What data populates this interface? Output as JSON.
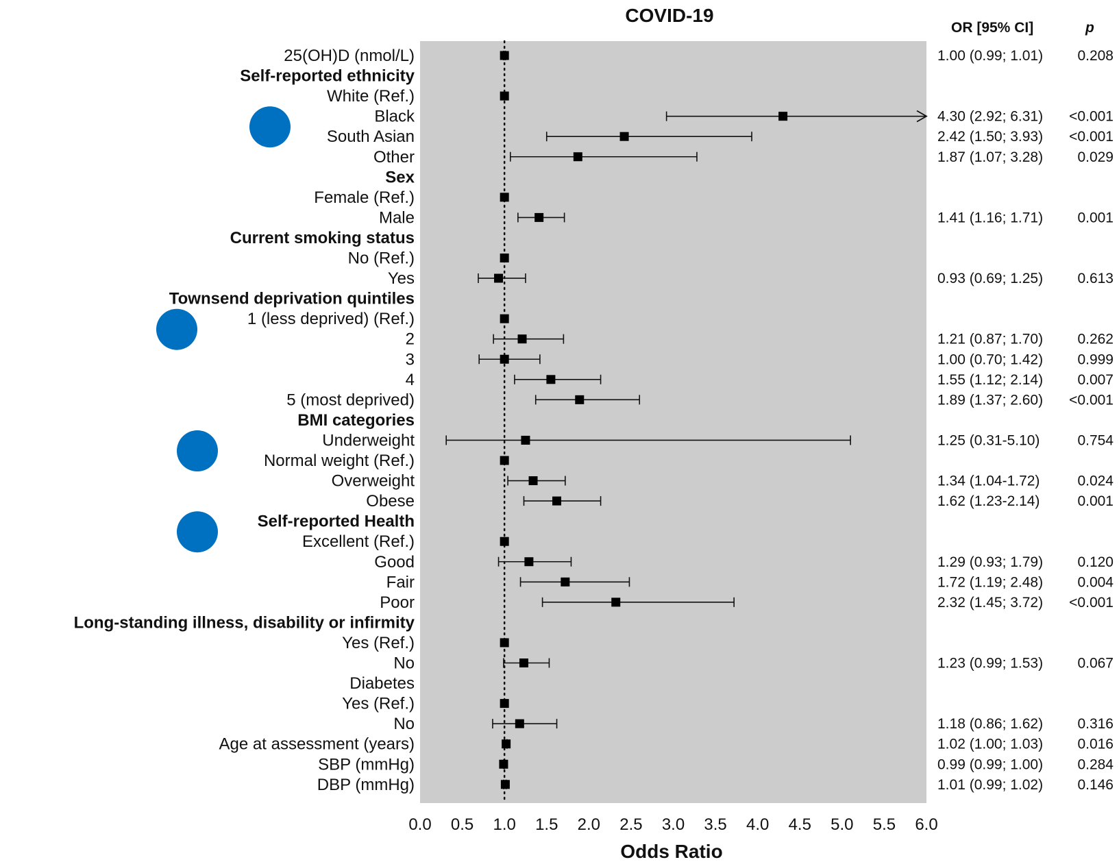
{
  "chart_data": {
    "type": "forest",
    "title": "COVID-19",
    "xlabel": "Odds Ratio",
    "xlim": [
      0,
      6
    ],
    "xticks": [
      "0.0",
      "0.5",
      "1.0",
      "1.5",
      "2.0",
      "2.5",
      "3.0",
      "3.5",
      "4.0",
      "4.5",
      "5.0",
      "5.5",
      "6.0"
    ],
    "reference_line": 1.0,
    "column_headers": {
      "or_ci": "OR  [95% CI]",
      "p": "p"
    },
    "highlight_color": "#cccccc",
    "marker_color": "#0070c0",
    "rows": [
      {
        "label": "25(OH)D (nmol/L)",
        "bold": false,
        "or": 1.0,
        "lo": 0.99,
        "hi": 1.01,
        "stat": "1.00 (0.99; 1.01)",
        "p": "0.208"
      },
      {
        "label": "Self-reported ethnicity",
        "bold": true
      },
      {
        "label": "White (Ref.)",
        "bold": false,
        "or": 1.0
      },
      {
        "label": "Black",
        "bold": false,
        "or": 4.3,
        "lo": 2.92,
        "hi": 6.31,
        "arrow": true,
        "stat": "4.30 (2.92; 6.31)",
        "p": "<0.001"
      },
      {
        "label": "South Asian",
        "bold": false,
        "or": 2.42,
        "lo": 1.5,
        "hi": 3.93,
        "stat": "2.42 (1.50; 3.93)",
        "p": "<0.001"
      },
      {
        "label": "Other",
        "bold": false,
        "or": 1.87,
        "lo": 1.07,
        "hi": 3.28,
        "stat": "1.87 (1.07; 3.28)",
        "p": "0.029"
      },
      {
        "label": "Sex",
        "bold": true
      },
      {
        "label": "Female (Ref.)",
        "bold": false,
        "or": 1.0
      },
      {
        "label": "Male",
        "bold": false,
        "or": 1.41,
        "lo": 1.16,
        "hi": 1.71,
        "stat": "1.41 (1.16; 1.71)",
        "p": "0.001"
      },
      {
        "label": "Current smoking status",
        "bold": true
      },
      {
        "label": "No (Ref.)",
        "bold": false,
        "or": 1.0
      },
      {
        "label": "Yes",
        "bold": false,
        "or": 0.93,
        "lo": 0.69,
        "hi": 1.25,
        "stat": "0.93 (0.69; 1.25)",
        "p": "0.613"
      },
      {
        "label": "Townsend deprivation quintiles",
        "bold": true
      },
      {
        "label": "1 (less deprived)  (Ref.)",
        "bold": false,
        "or": 1.0
      },
      {
        "label": "2",
        "bold": false,
        "or": 1.21,
        "lo": 0.87,
        "hi": 1.7,
        "stat": "1.21 (0.87; 1.70)",
        "p": "0.262"
      },
      {
        "label": "3",
        "bold": false,
        "or": 1.0,
        "lo": 0.7,
        "hi": 1.42,
        "stat": "1.00 (0.70; 1.42)",
        "p": "0.999"
      },
      {
        "label": "4",
        "bold": false,
        "or": 1.55,
        "lo": 1.12,
        "hi": 2.14,
        "stat": "1.55 (1.12; 2.14)",
        "p": "0.007"
      },
      {
        "label": "5 (most deprived)",
        "bold": false,
        "or": 1.89,
        "lo": 1.37,
        "hi": 2.6,
        "stat": "1.89 (1.37; 2.60)",
        "p": "<0.001"
      },
      {
        "label": "BMI categories",
        "bold": true
      },
      {
        "label": "Underweight",
        "bold": false,
        "or": 1.25,
        "lo": 0.31,
        "hi": 5.1,
        "stat": "1.25 (0.31-5.10)",
        "p": "0.754"
      },
      {
        "label": "Normal weight (Ref.)",
        "bold": false,
        "or": 1.0
      },
      {
        "label": "Overweight",
        "bold": false,
        "or": 1.34,
        "lo": 1.04,
        "hi": 1.72,
        "stat": "1.34 (1.04-1.72)",
        "p": "0.024"
      },
      {
        "label": "Obese",
        "bold": false,
        "or": 1.62,
        "lo": 1.23,
        "hi": 2.14,
        "stat": "1.62 (1.23-2.14)",
        "p": "0.001"
      },
      {
        "label": "Self-reported Health",
        "bold": true
      },
      {
        "label": "Excellent (Ref.)",
        "bold": false,
        "or": 1.0
      },
      {
        "label": "Good",
        "bold": false,
        "or": 1.29,
        "lo": 0.93,
        "hi": 1.79,
        "stat": "1.29 (0.93; 1.79)",
        "p": "0.120"
      },
      {
        "label": "Fair",
        "bold": false,
        "or": 1.72,
        "lo": 1.19,
        "hi": 2.48,
        "stat": "1.72 (1.19; 2.48)",
        "p": "0.004"
      },
      {
        "label": "Poor",
        "bold": false,
        "or": 2.32,
        "lo": 1.45,
        "hi": 3.72,
        "stat": "2.32 (1.45; 3.72)",
        "p": "<0.001"
      },
      {
        "label": "Long-standing illness, disability or infirmity",
        "bold": true
      },
      {
        "label": "Yes (Ref.)",
        "bold": false,
        "or": 1.0
      },
      {
        "label": "No",
        "bold": false,
        "or": 1.23,
        "lo": 0.99,
        "hi": 1.53,
        "stat": "1.23 (0.99; 1.53)",
        "p": "0.067"
      },
      {
        "label": "Diabetes",
        "bold": false
      },
      {
        "label": "Yes (Ref.)",
        "bold": false,
        "or": 1.0
      },
      {
        "label": "No",
        "bold": false,
        "or": 1.18,
        "lo": 0.86,
        "hi": 1.62,
        "stat": "1.18 (0.86; 1.62)",
        "p": "0.316"
      },
      {
        "label": "Age at assessment (years)",
        "bold": false,
        "or": 1.02,
        "lo": 1.0,
        "hi": 1.03,
        "stat": "1.02 (1.00; 1.03)",
        "p": "0.016"
      },
      {
        "label": "SBP (mmHg)",
        "bold": false,
        "or": 0.99,
        "lo": 0.99,
        "hi": 1.0,
        "stat": "0.99 (0.99; 1.00)",
        "p": "0.284"
      },
      {
        "label": "DBP (mmHg)",
        "bold": false,
        "or": 1.01,
        "lo": 0.99,
        "hi": 1.02,
        "stat": "1.01 (0.99; 1.02)",
        "p": "0.146"
      }
    ],
    "markers_at_rows": [
      4,
      14,
      20,
      24
    ]
  }
}
